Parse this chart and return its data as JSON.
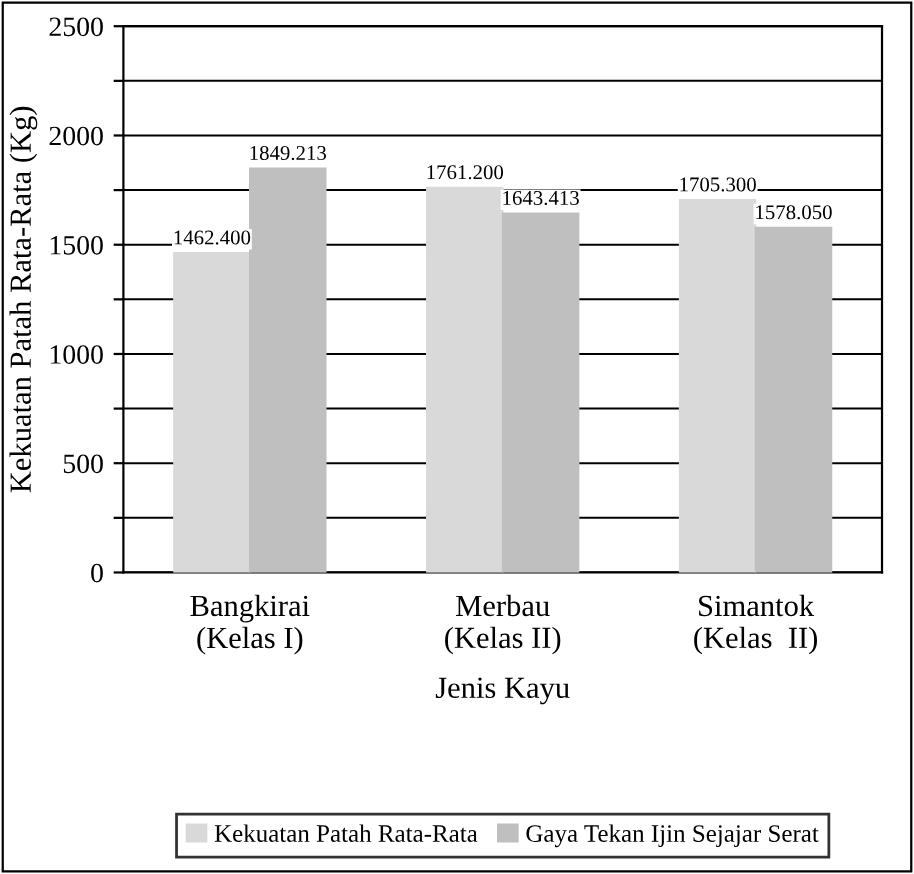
{
  "chart_data": {
    "type": "bar",
    "xlabel": "Jenis Kayu",
    "ylabel": "Kekuatan Patah Rata-Rata (Kg)",
    "categories": [
      "Bangkirai\n(Kelas I)",
      "Merbau\n(Kelas II)",
      "Simantok\n(Kelas  II)"
    ],
    "series": [
      {
        "name": "Kekuatan Patah Rata-Rata",
        "color": "#d9d9d9",
        "values": [
          1462.4,
          1761.2,
          1705.3
        ],
        "value_labels": [
          "1462.400",
          "1761.200",
          "1705.300"
        ]
      },
      {
        "name": "Gaya Tekan Ijin Sejajar Serat",
        "color": "#bfbfbf",
        "values": [
          1849.213,
          1643.413,
          1578.05
        ],
        "value_labels": [
          "1849.213",
          "1643.413",
          "1578.050"
        ]
      }
    ],
    "ylim": [
      0,
      2500
    ],
    "yticks": [
      0,
      {
        "value": 250,
        "label": null
      },
      500,
      {
        "value": 750,
        "label": null
      },
      1000,
      {
        "value": 1250,
        "label": null
      },
      1500,
      {
        "value": 1750,
        "label": null
      },
      2000,
      {
        "value": 2250,
        "label": null
      },
      2500
    ],
    "grid": "y",
    "legend": "bottom"
  }
}
